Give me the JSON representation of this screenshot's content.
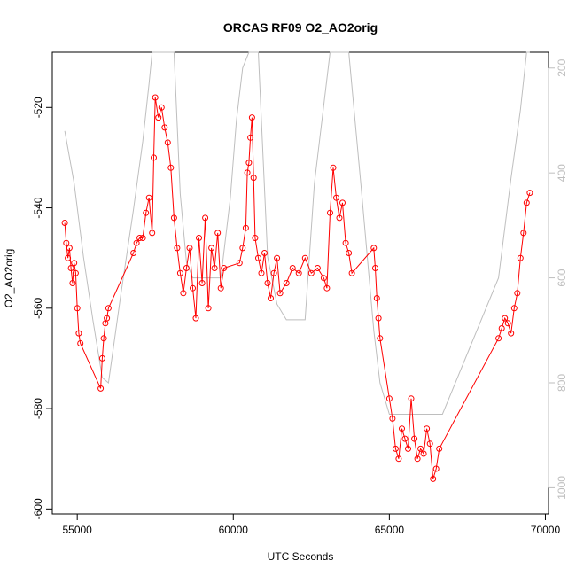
{
  "chart_data": {
    "type": "line",
    "title": "ORCAS RF09 O2_AO2orig",
    "xlabel": "UTC Seconds",
    "ylabel": "O2_AO2orig",
    "xlim": [
      54200,
      70100
    ],
    "ylim": [
      -601,
      -509
    ],
    "x_ticks": [
      55000,
      60000,
      65000,
      70000
    ],
    "y_ticks": [
      -600,
      -580,
      -560,
      -540,
      -520
    ],
    "y2lim": [
      1050,
      170
    ],
    "y2_ticks": [
      200,
      400,
      600,
      800,
      1000
    ],
    "colors": {
      "signal": "#ff0000",
      "pressure": "#bebebe",
      "axis": "#000000",
      "secondary_axis": "#bebebe"
    },
    "series": [
      {
        "axis": "left",
        "style": "line+open-circles",
        "x": [
          54600,
          54650,
          54700,
          54750,
          54800,
          54850,
          54900,
          54950,
          55000,
          55050,
          55100,
          55750,
          55800,
          55850,
          55900,
          55950,
          56000,
          56800,
          56900,
          57000,
          57100,
          57200,
          57300,
          57400,
          57450,
          57500,
          57600,
          57700,
          57800,
          57900,
          58000,
          58100,
          58200,
          58300,
          58400,
          58500,
          58600,
          58700,
          58800,
          58900,
          59000,
          59100,
          59200,
          59300,
          59400,
          59500,
          59600,
          59700,
          60200,
          60300,
          60400,
          60450,
          60500,
          60550,
          60600,
          60650,
          60700,
          60800,
          60900,
          61000,
          61100,
          61200,
          61300,
          61400,
          61500,
          61700,
          61900,
          62100,
          62300,
          62500,
          62700,
          62900,
          63000,
          63100,
          63200,
          63300,
          63400,
          63500,
          63600,
          63700,
          63800,
          64500,
          64550,
          64600,
          64650,
          64700,
          65000,
          65100,
          65200,
          65300,
          65400,
          65500,
          65600,
          65700,
          65800,
          65900,
          66000,
          66100,
          66200,
          66300,
          66400,
          66500,
          66600,
          68500,
          68600,
          68700,
          68800,
          68900,
          69000,
          69100,
          69200,
          69300,
          69400,
          69500
        ],
        "y": [
          -543,
          -547,
          -550,
          -548,
          -552,
          -555,
          -551,
          -553,
          -560,
          -565,
          -567,
          -576,
          -570,
          -566,
          -563,
          -562,
          -560,
          -549,
          -547,
          -546,
          -546,
          -541,
          -538,
          -545,
          -530,
          -518,
          -522,
          -520,
          -524,
          -527,
          -532,
          -542,
          -548,
          -553,
          -557,
          -552,
          -548,
          -556,
          -562,
          -546,
          -555,
          -542,
          -560,
          -548,
          -552,
          -545,
          -556,
          -552,
          -551,
          -548,
          -544,
          -533,
          -531,
          -526,
          -522,
          -534,
          -546,
          -550,
          -553,
          -549,
          -555,
          -558,
          -553,
          -550,
          -557,
          -555,
          -552,
          -553,
          -550,
          -553,
          -552,
          -554,
          -556,
          -541,
          -532,
          -538,
          -542,
          -539,
          -547,
          -549,
          -553,
          -548,
          -552,
          -558,
          -562,
          -566,
          -578,
          -582,
          -588,
          -590,
          -584,
          -586,
          -588,
          -578,
          -586,
          -590,
          -588,
          -589,
          -584,
          -587,
          -594,
          -592,
          -588,
          -566,
          -564,
          -562,
          -563,
          -565,
          -560,
          -557,
          -550,
          -545,
          -539,
          -537
        ]
      },
      {
        "axis": "right",
        "style": "line",
        "x": [
          54600,
          54900,
          55200,
          55500,
          55800,
          56000,
          56400,
          56800,
          57100,
          57300,
          57400,
          57500,
          57700,
          57900,
          58100,
          58300,
          58500,
          58700,
          59000,
          59300,
          59600,
          59900,
          60100,
          60300,
          60500,
          60800,
          61100,
          61400,
          61700,
          62000,
          62300,
          62600,
          63100,
          63500,
          63700,
          64100,
          64500,
          64700,
          65000,
          65400,
          65700,
          66000,
          66300,
          66500,
          66700,
          67600,
          68500,
          68900,
          69200,
          69400,
          69500
        ],
        "y": [
          320,
          420,
          560,
          680,
          790,
          800,
          630,
          470,
          340,
          230,
          170,
          170,
          170,
          170,
          170,
          440,
          570,
          600,
          600,
          600,
          600,
          450,
          300,
          200,
          170,
          170,
          560,
          650,
          680,
          680,
          680,
          420,
          170,
          170,
          170,
          430,
          700,
          800,
          860,
          860,
          860,
          860,
          860,
          860,
          860,
          730,
          600,
          410,
          280,
          170,
          170
        ]
      }
    ]
  }
}
